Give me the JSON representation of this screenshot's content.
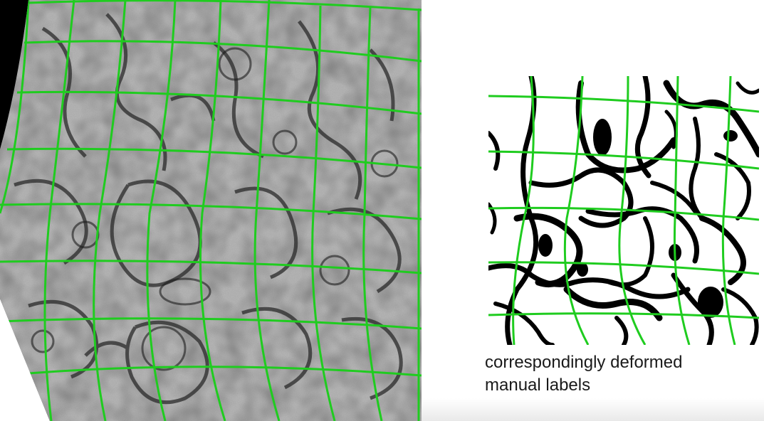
{
  "image": {
    "left_panel": {
      "description_name": "deformed-electron-microscopy-image",
      "grid_color": "#22cc22"
    },
    "right_panel": {
      "description_name": "deformed-manual-labels",
      "grid_color": "#22cc22",
      "label_color": "#000000",
      "background_color": "#ffffff"
    }
  },
  "caption": {
    "line1": "correspondingly deformed",
    "line2": "manual labels"
  }
}
